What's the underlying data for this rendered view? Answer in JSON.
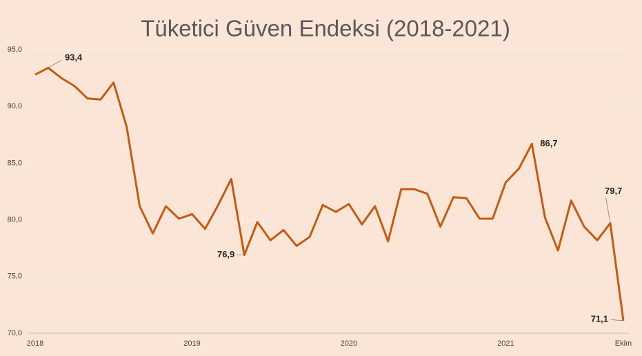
{
  "chart_data": {
    "type": "line",
    "title": "Tüketici Güven Endeksi (2018-2021)",
    "categories": [
      "2018",
      null,
      null,
      null,
      null,
      null,
      null,
      null,
      null,
      null,
      null,
      null,
      "2019",
      null,
      null,
      null,
      null,
      null,
      null,
      null,
      null,
      null,
      null,
      null,
      "2020",
      null,
      null,
      null,
      null,
      null,
      null,
      null,
      null,
      null,
      null,
      null,
      "2021",
      null,
      null,
      null,
      null,
      null,
      null,
      null,
      null,
      "Ekim"
    ],
    "values": [
      92.8,
      93.4,
      92.5,
      91.8,
      90.7,
      90.6,
      92.1,
      88.2,
      81.2,
      78.8,
      81.2,
      80.1,
      80.5,
      79.2,
      81.3,
      83.6,
      76.9,
      79.8,
      78.2,
      79.1,
      77.7,
      78.5,
      81.3,
      80.7,
      81.4,
      79.6,
      81.2,
      78.1,
      82.7,
      82.7,
      82.3,
      79.4,
      82.0,
      81.9,
      80.1,
      80.1,
      83.3,
      84.5,
      86.7,
      80.2,
      77.3,
      81.7,
      79.4,
      78.2,
      79.7,
      71.1
    ],
    "value_labels": [
      null,
      "93,4",
      null,
      null,
      null,
      null,
      null,
      null,
      null,
      null,
      null,
      null,
      null,
      null,
      null,
      null,
      "76,9",
      null,
      null,
      null,
      null,
      null,
      null,
      null,
      null,
      null,
      null,
      null,
      null,
      null,
      null,
      null,
      null,
      null,
      null,
      null,
      null,
      null,
      "86,7",
      null,
      null,
      null,
      null,
      null,
      "79,7",
      "71,1"
    ],
    "color": "#c55a11",
    "ylim": [
      70,
      95
    ],
    "yticks": [
      {
        "value": 70,
        "label": "70,0"
      },
      {
        "value": 75,
        "label": "75,0"
      },
      {
        "value": 80,
        "label": "80,0"
      },
      {
        "value": 85,
        "label": "85,0"
      },
      {
        "value": 90,
        "label": "90,0"
      },
      {
        "value": 95,
        "label": "95,0"
      }
    ],
    "grid": true
  }
}
